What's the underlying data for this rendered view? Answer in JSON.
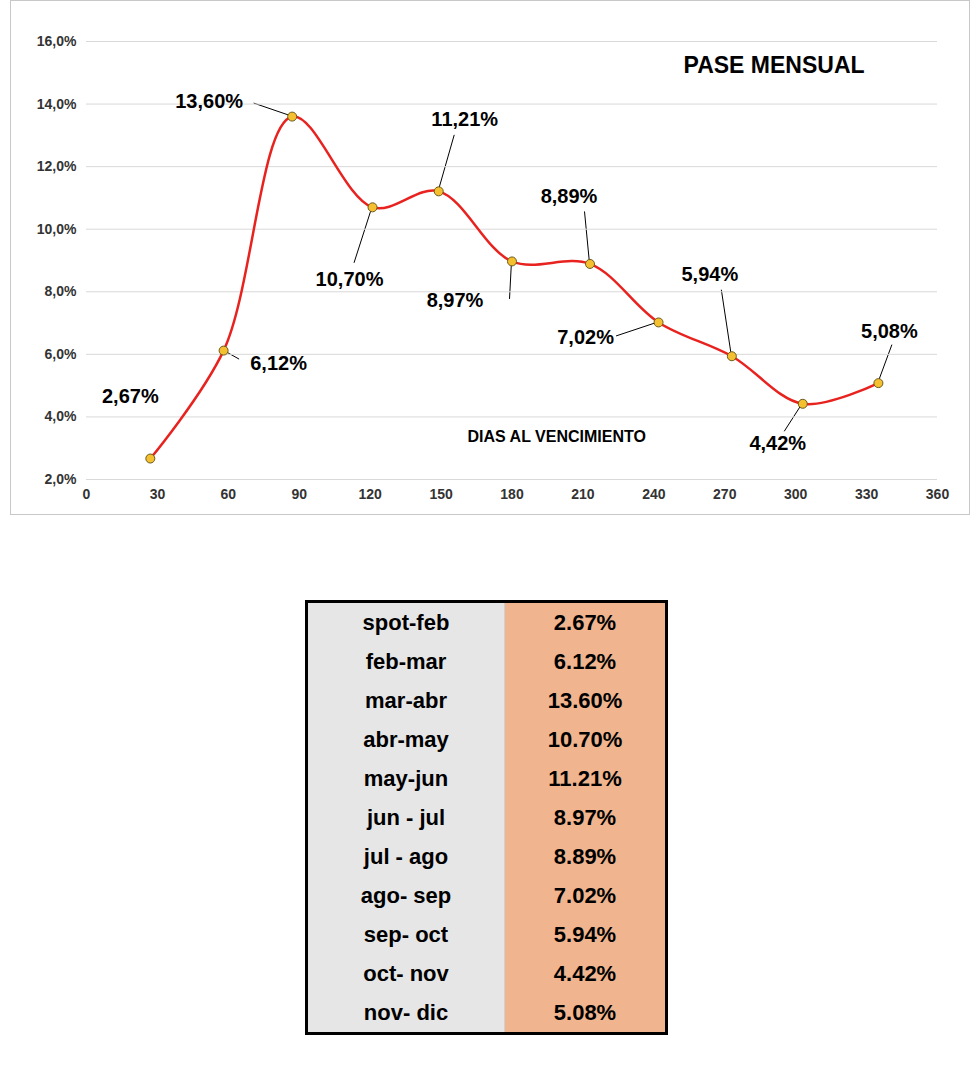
{
  "chart_data": {
    "type": "line",
    "title": "PASE MENSUAL",
    "x_label": "DIAS AL VENCIMIENTO",
    "x": [
      27,
      58,
      87,
      121,
      149,
      180,
      213,
      242,
      273,
      303,
      335
    ],
    "values": [
      2.67,
      6.12,
      13.6,
      10.7,
      11.21,
      8.97,
      8.89,
      7.02,
      5.94,
      4.42,
      5.08
    ],
    "value_labels": [
      "2,67%",
      "6,12%",
      "13,60%",
      "10,70%",
      "11,21%",
      "8,97%",
      "8,89%",
      "7,02%",
      "5,94%",
      "4,42%",
      "5,08%"
    ],
    "data_labels": true,
    "color": "#e8231f",
    "marker": "circle",
    "line_style": "solid",
    "xlim": [
      0,
      360
    ],
    "xticks": [
      0,
      30,
      60,
      90,
      120,
      150,
      180,
      210,
      240,
      270,
      300,
      330,
      360
    ],
    "ylim": [
      2,
      16
    ],
    "yticks": [
      {
        "value": 2,
        "label": "2,0%"
      },
      {
        "value": 4,
        "label": "4,0%"
      },
      {
        "value": 6,
        "label": "6,0%"
      },
      {
        "value": 8,
        "label": "8,0%"
      },
      {
        "value": 10,
        "label": "10,0%"
      },
      {
        "value": 12,
        "label": "12,0%"
      },
      {
        "value": 14,
        "label": "14,0%"
      },
      {
        "value": 16,
        "label": "16,0%"
      }
    ],
    "grid": true
  },
  "table": {
    "rows": [
      [
        "spot-feb",
        "2.67%"
      ],
      [
        "feb-mar",
        "6.12%"
      ],
      [
        "mar-abr",
        "13.60%"
      ],
      [
        "abr-may",
        "10.70%"
      ],
      [
        "may-jun",
        "11.21%"
      ],
      [
        "jun - jul",
        "8.97%"
      ],
      [
        "jul - ago",
        "8.89%"
      ],
      [
        "ago- sep",
        "7.02%"
      ],
      [
        "sep- oct",
        "5.94%"
      ],
      [
        "oct- nov",
        "4.42%"
      ],
      [
        "nov- dic",
        "5.08%"
      ]
    ]
  }
}
